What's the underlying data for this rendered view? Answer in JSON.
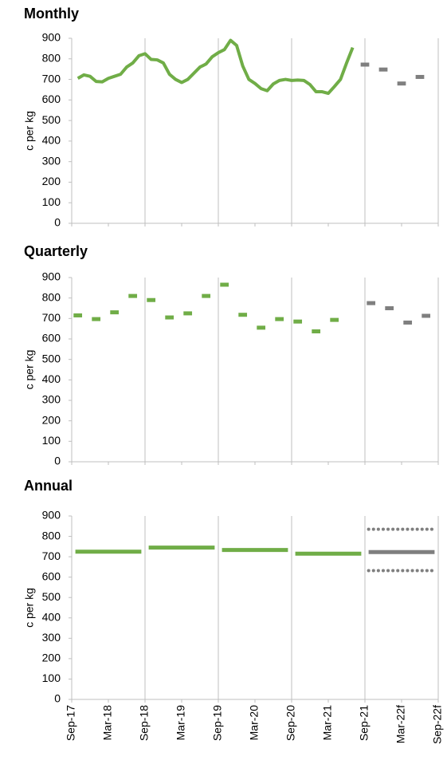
{
  "chart_data": [
    {
      "type": "line",
      "title": "Monthly",
      "ylabel": "c per kg",
      "ylim": [
        0,
        900
      ],
      "yticks": [
        0,
        100,
        200,
        300,
        400,
        500,
        600,
        700,
        800,
        900
      ],
      "series": [
        {
          "color": "#70ad47",
          "style": "line",
          "values": [
            null,
            705,
            722,
            715,
            690,
            688,
            705,
            715,
            725,
            760,
            780,
            815,
            825,
            797,
            795,
            780,
            725,
            700,
            685,
            700,
            730,
            760,
            775,
            810,
            830,
            845,
            890,
            865,
            765,
            700,
            680,
            655,
            645,
            678,
            695,
            700,
            695,
            697,
            695,
            675,
            640,
            640,
            632,
            665,
            700,
            780,
            855,
            null,
            null,
            null,
            null,
            null,
            null,
            null,
            null,
            null,
            null,
            null,
            null,
            null,
            null
          ]
        },
        {
          "color": "#7f7f7f",
          "style": "dash",
          "values": [
            null,
            null,
            null,
            null,
            null,
            null,
            null,
            null,
            null,
            null,
            null,
            null,
            null,
            null,
            null,
            null,
            null,
            null,
            null,
            null,
            null,
            null,
            null,
            null,
            null,
            null,
            null,
            null,
            null,
            null,
            null,
            null,
            null,
            null,
            null,
            null,
            null,
            null,
            null,
            null,
            null,
            null,
            null,
            null,
            null,
            null,
            null,
            null,
            772,
            null,
            null,
            748,
            null,
            null,
            680,
            null,
            null,
            712,
            null,
            null,
            null
          ]
        }
      ]
    },
    {
      "type": "line",
      "title": "Quarterly",
      "ylabel": "c per kg",
      "ylim": [
        0,
        900
      ],
      "yticks": [
        0,
        100,
        200,
        300,
        400,
        500,
        600,
        700,
        800,
        900
      ],
      "series": [
        {
          "color": "#70ad47",
          "style": "dash",
          "values": [
            null,
            715,
            null,
            null,
            697,
            null,
            null,
            730,
            null,
            null,
            810,
            null,
            null,
            790,
            null,
            null,
            705,
            null,
            null,
            725,
            null,
            null,
            810,
            null,
            null,
            865,
            null,
            null,
            718,
            null,
            null,
            655,
            null,
            null,
            697,
            null,
            null,
            685,
            null,
            null,
            637,
            null,
            null,
            693,
            null,
            null,
            null,
            null,
            null,
            null,
            null,
            null,
            null,
            null,
            null,
            null,
            null,
            null,
            null,
            null,
            null
          ]
        },
        {
          "color": "#7f7f7f",
          "style": "dash",
          "values": [
            null,
            null,
            null,
            null,
            null,
            null,
            null,
            null,
            null,
            null,
            null,
            null,
            null,
            null,
            null,
            null,
            null,
            null,
            null,
            null,
            null,
            null,
            null,
            null,
            null,
            null,
            null,
            null,
            null,
            null,
            null,
            null,
            null,
            null,
            null,
            null,
            null,
            null,
            null,
            null,
            null,
            null,
            null,
            null,
            null,
            null,
            null,
            null,
            null,
            775,
            null,
            null,
            750,
            null,
            null,
            680,
            null,
            null,
            713,
            null,
            null
          ]
        }
      ]
    },
    {
      "type": "line",
      "title": "Annual",
      "ylabel": "c per kg",
      "ylim": [
        0,
        900
      ],
      "yticks": [
        0,
        100,
        200,
        300,
        400,
        500,
        600,
        700,
        800,
        900
      ],
      "categories": [
        "Sep-17",
        null,
        null,
        null,
        null,
        null,
        "Mar-18",
        null,
        null,
        null,
        null,
        null,
        "Sep-18",
        null,
        null,
        null,
        null,
        null,
        "Mar-19",
        null,
        null,
        null,
        null,
        null,
        "Sep-19",
        null,
        null,
        null,
        null,
        null,
        "Mar-20",
        null,
        null,
        null,
        null,
        null,
        "Sep-20",
        null,
        null,
        null,
        null,
        null,
        "Mar-21",
        null,
        null,
        null,
        null,
        null,
        "Sep-21",
        null,
        null,
        null,
        null,
        null,
        "Mar-22f",
        null,
        null,
        null,
        null,
        null,
        "Sep-22f"
      ],
      "series": [
        {
          "color": "#70ad47",
          "style": "segment",
          "values": [
            null,
            null,
            null,
            null,
            null,
            null,
            725,
            null,
            null,
            null,
            null,
            null,
            null,
            null,
            null,
            null,
            null,
            null,
            745,
            null,
            null,
            null,
            null,
            null,
            null,
            null,
            null,
            null,
            null,
            null,
            733,
            null,
            null,
            null,
            null,
            null,
            null,
            null,
            null,
            null,
            null,
            null,
            715,
            null,
            null,
            null,
            null,
            null,
            null,
            null,
            null,
            null,
            null,
            null,
            null,
            null,
            null,
            null,
            null,
            null,
            null
          ]
        },
        {
          "color": "#7f7f7f",
          "style": "segment",
          "values": [
            null,
            null,
            null,
            null,
            null,
            null,
            null,
            null,
            null,
            null,
            null,
            null,
            null,
            null,
            null,
            null,
            null,
            null,
            null,
            null,
            null,
            null,
            null,
            null,
            null,
            null,
            null,
            null,
            null,
            null,
            null,
            null,
            null,
            null,
            null,
            null,
            null,
            null,
            null,
            null,
            null,
            null,
            null,
            null,
            null,
            null,
            null,
            null,
            null,
            null,
            null,
            null,
            null,
            null,
            723,
            null,
            null,
            null,
            null,
            null,
            null
          ]
        },
        {
          "color": "#7f7f7f",
          "style": "dotted",
          "values": [
            null,
            null,
            null,
            null,
            null,
            null,
            null,
            null,
            null,
            null,
            null,
            null,
            null,
            null,
            null,
            null,
            null,
            null,
            null,
            null,
            null,
            null,
            null,
            null,
            null,
            null,
            null,
            null,
            null,
            null,
            null,
            null,
            null,
            null,
            null,
            null,
            null,
            null,
            null,
            null,
            null,
            null,
            null,
            null,
            null,
            null,
            null,
            null,
            null,
            null,
            null,
            null,
            null,
            null,
            835,
            null,
            null,
            null,
            null,
            null,
            null
          ]
        },
        {
          "color": "#7f7f7f",
          "style": "dotted",
          "values": [
            null,
            null,
            null,
            null,
            null,
            null,
            null,
            null,
            null,
            null,
            null,
            null,
            null,
            null,
            null,
            null,
            null,
            null,
            null,
            null,
            null,
            null,
            null,
            null,
            null,
            null,
            null,
            null,
            null,
            null,
            null,
            null,
            null,
            null,
            null,
            null,
            null,
            null,
            null,
            null,
            null,
            null,
            null,
            null,
            null,
            null,
            null,
            null,
            null,
            null,
            null,
            null,
            null,
            null,
            632,
            null,
            null,
            null,
            null,
            null,
            null
          ]
        }
      ]
    }
  ]
}
